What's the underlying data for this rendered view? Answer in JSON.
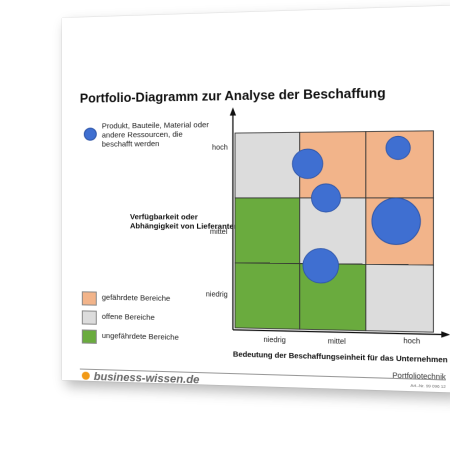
{
  "title": "Portfolio-Diagramm zur Analyse der Beschaffung",
  "bubble_legend": "Produkt, Bauteile, Material oder andere Ressourcen, die beschafft werden",
  "y_axis": {
    "label": "Verfügbarkeit oder Abhängigkeit von Lieferanten",
    "ticks": [
      "niedrig",
      "mittel",
      "hoch"
    ]
  },
  "x_axis": {
    "label": "Bedeutung der Beschaffungseinheit für das Unternehmen",
    "ticks": [
      "niedrig",
      "mittel",
      "hoch"
    ]
  },
  "area_legend": [
    {
      "label": "gefährdete Bereiche",
      "color": "#f2b48a"
    },
    {
      "label": "offene Bereiche",
      "color": "#dcdcdc"
    },
    {
      "label": "ungefährdete Bereiche",
      "color": "#6aab3e"
    }
  ],
  "colors": {
    "endangered": "#f2b48a",
    "open": "#dcdcdc",
    "safe": "#6aab3e",
    "bubble": "#3f6fd1",
    "bubble_stroke": "#2e55a8",
    "brand_accent": "#f29a17"
  },
  "grid": {
    "rows_top_to_bottom": [
      [
        "open",
        "endangered",
        "endangered"
      ],
      [
        "safe",
        "open",
        "endangered"
      ],
      [
        "safe",
        "safe",
        "open"
      ]
    ]
  },
  "bubbles": [
    {
      "x": 1.12,
      "y": 2.52,
      "size": 0.5
    },
    {
      "x": 2.48,
      "y": 2.75,
      "size": 0.3
    },
    {
      "x": 1.4,
      "y": 2.0,
      "size": 0.45
    },
    {
      "x": 2.45,
      "y": 1.65,
      "size": 1.2
    },
    {
      "x": 1.32,
      "y": 0.97,
      "size": 0.68
    }
  ],
  "footer": {
    "brand": "business-wissen.de",
    "doc_name": "Portfoliotechnik",
    "article_no": "Art.-Nr. 99 096 12"
  }
}
